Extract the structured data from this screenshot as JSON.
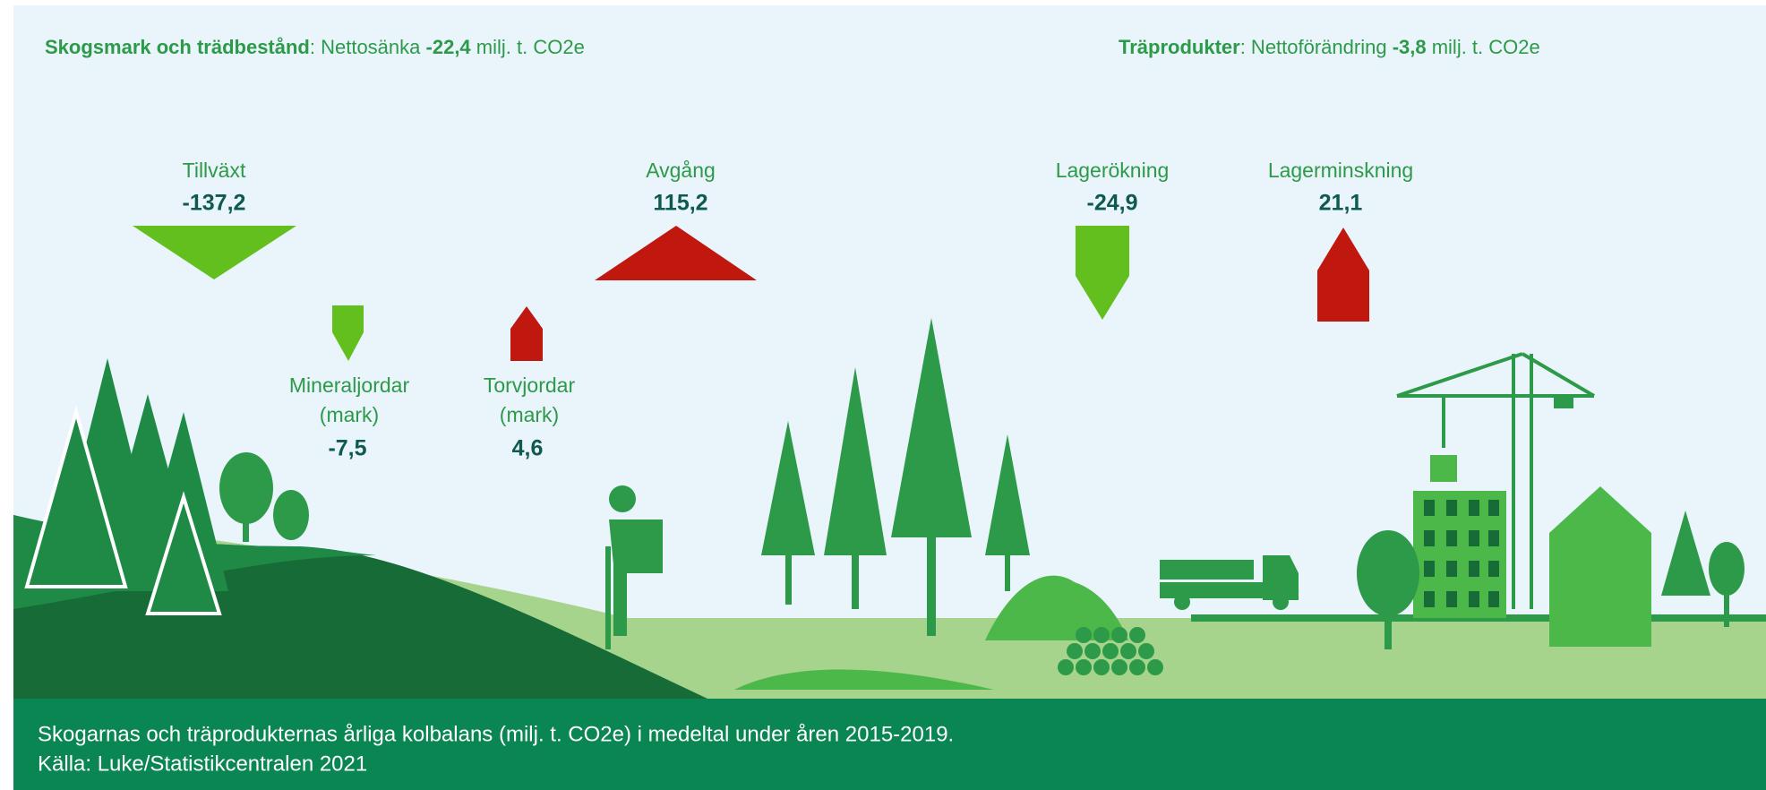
{
  "left_header": {
    "title": "Skogsmark och trädbestånd",
    "text": ": Nettosänka ",
    "value": "-22,4",
    "unit": " milj. t. CO2e"
  },
  "right_header": {
    "title": "Träprodukter",
    "text": ": Nettoförändring ",
    "value": "-3,8",
    "unit": " milj. t. CO2e"
  },
  "flows": [
    {
      "label": [
        "Tillväxt"
      ],
      "value": "-137,2"
    },
    {
      "label": [
        "Avgång"
      ],
      "value": "115,2"
    },
    {
      "label": [
        "Lagerökning"
      ],
      "value": "-24,9"
    },
    {
      "label": [
        "Lagerminskning"
      ],
      "value": "21,1"
    },
    {
      "label": [
        "Mineraljordar",
        "(mark)"
      ],
      "value": "-7,5"
    },
    {
      "label": [
        "Torvjordar",
        "(mark)"
      ],
      "value": "4,6"
    }
  ],
  "footer": [
    "Skogarnas och träprodukternas årliga kolbalans (milj. t. CO2e) i medeltal under åren 2015-2019.",
    "Källa: Luke/Statistikcentralen 2021"
  ]
}
